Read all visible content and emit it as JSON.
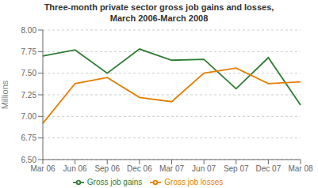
{
  "chart_data": {
    "type": "line",
    "title": "Three-month private sector gross job gains and losses,\nMarch 2006-March 2008",
    "y_label": "Millions",
    "categories": [
      "Mar 06",
      "Jun 06",
      "Sep 06",
      "Dec 06",
      "Mar 07",
      "Jun 07",
      "Sep 07",
      "Dec 07",
      "Mar 08"
    ],
    "series": [
      {
        "name": "Gross job gains",
        "color": "#2e7d32",
        "values": [
          7.7,
          7.77,
          7.5,
          7.78,
          7.65,
          7.66,
          7.32,
          7.68,
          7.13
        ]
      },
      {
        "name": "Gross job losses",
        "color": "#e67e00",
        "values": [
          6.92,
          7.38,
          7.45,
          7.22,
          7.17,
          7.5,
          7.56,
          7.38,
          7.4
        ]
      }
    ],
    "ylim": [
      6.5,
      8
    ],
    "yticks": [
      {
        "value": 6.5,
        "label": "6.50"
      },
      6.75,
      {
        "value": 7,
        "label": "7.00"
      },
      7.25,
      {
        "value": 7.5,
        "label": "7.50"
      },
      7.75,
      {
        "value": 8,
        "label": "8.00"
      }
    ],
    "grid": true,
    "legend": "bottom"
  }
}
